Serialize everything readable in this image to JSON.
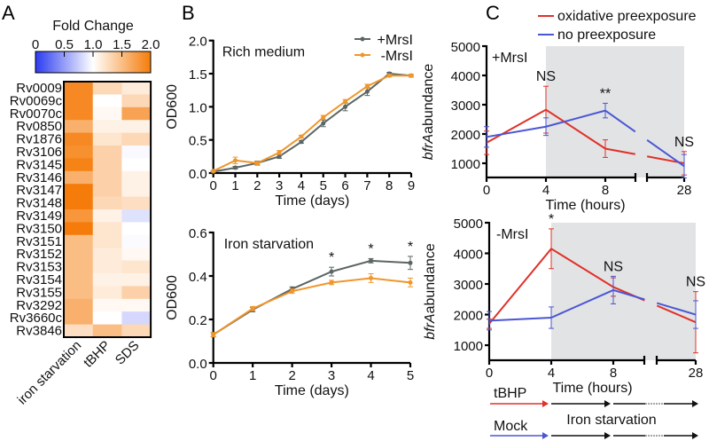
{
  "panel_labels": [
    "A",
    "B",
    "C"
  ],
  "colors": {
    "heat_low": "#2b3cf0",
    "heat_mid": "#ffffff",
    "heat_high": "#f57c0a",
    "plus_mrsi": "#5b6664",
    "minus_mrsi": "#f0962c",
    "oxidative": "#e0312a",
    "no_preexposure": "#4a56d4",
    "shading": "#e2e3e4"
  },
  "chart_data": [
    {
      "type": "heatmap",
      "title": "Fold Change",
      "colorbar_ticks": [
        "0",
        "0.5",
        "1.0",
        "1.5",
        "2.0"
      ],
      "colorbar_range": [
        0,
        2
      ],
      "columns": [
        "iron starvation",
        "tBHP",
        "SDS"
      ],
      "rows": [
        "Rv0009",
        "Rv0069c",
        "Rv0070c",
        "Rv0850",
        "Rv1876",
        "Rv3106",
        "Rv3145",
        "Rv3146",
        "Rv3147",
        "Rv3148",
        "Rv3149",
        "Rv3150",
        "Rv3151",
        "Rv3152",
        "Rv3153",
        "Rv3154",
        "Rv3155",
        "Rv3292",
        "Rv3660c",
        "Rv3846"
      ],
      "values": [
        [
          1.9,
          1.3,
          1.15
        ],
        [
          1.9,
          1.0,
          1.3
        ],
        [
          1.9,
          1.05,
          1.7
        ],
        [
          1.6,
          1.1,
          1.1
        ],
        [
          1.9,
          1.2,
          1.3
        ],
        [
          1.85,
          1.35,
          0.97
        ],
        [
          1.95,
          1.35,
          1.0
        ],
        [
          1.6,
          1.35,
          1.1
        ],
        [
          2.0,
          1.35,
          1.1
        ],
        [
          2.0,
          1.3,
          1.25
        ],
        [
          1.8,
          1.1,
          0.85
        ],
        [
          2.0,
          1.2,
          1.0
        ],
        [
          1.5,
          1.2,
          0.98
        ],
        [
          1.5,
          1.15,
          1.05
        ],
        [
          1.5,
          1.15,
          1.2
        ],
        [
          1.5,
          1.1,
          1.1
        ],
        [
          1.5,
          1.15,
          1.35
        ],
        [
          1.6,
          1.05,
          1.05
        ],
        [
          1.6,
          1.0,
          0.8
        ],
        [
          1.25,
          1.5,
          1.3
        ]
      ]
    },
    {
      "type": "line",
      "title": "Rich medium",
      "xlabel": "Time (days)",
      "ylabel": "OD600",
      "x": [
        0,
        1,
        2,
        3,
        4,
        5,
        6,
        7,
        8,
        9
      ],
      "xticks": [
        "0",
        "1",
        "2",
        "3",
        "4",
        "5",
        "6",
        "7",
        "8",
        "9"
      ],
      "yticks": [
        "0.0",
        "0.5",
        "1.0",
        "1.5",
        "2.0"
      ],
      "xlim": [
        0,
        9
      ],
      "ylim": [
        0,
        2.0
      ],
      "legend": "top-right",
      "series": [
        {
          "name": "+MrsI",
          "values": [
            0.02,
            0.08,
            0.15,
            0.25,
            0.47,
            0.75,
            1.0,
            1.23,
            1.5,
            1.47
          ],
          "error": [
            0.01,
            0.02,
            0.03,
            0.03,
            0.02,
            0.05,
            0.06,
            0.06,
            0.02,
            0.02
          ]
        },
        {
          "name": "-MrsI",
          "values": [
            0.03,
            0.19,
            0.15,
            0.31,
            0.55,
            0.84,
            1.08,
            1.31,
            1.47,
            1.47
          ],
          "error": [
            0.01,
            0.05,
            0.02,
            0.03,
            0.02,
            0.03,
            0.03,
            0.03,
            0.02,
            0.02
          ]
        }
      ],
      "annotations": []
    },
    {
      "type": "line",
      "title": "Iron starvation",
      "xlabel": "Time (days)",
      "ylabel": "OD600",
      "x": [
        0,
        1,
        2,
        3,
        4,
        5
      ],
      "xticks": [
        "0",
        "1",
        "2",
        "3",
        "4",
        "5"
      ],
      "yticks": [
        "0.0",
        "0.2",
        "0.4",
        "0.6"
      ],
      "xlim": [
        0,
        5
      ],
      "ylim": [
        0,
        0.6
      ],
      "series": [
        {
          "name": "+MrsI",
          "values": [
            0.13,
            0.245,
            0.34,
            0.42,
            0.47,
            0.46
          ],
          "error": [
            0.01,
            0.01,
            0.01,
            0.02,
            0.01,
            0.03
          ]
        },
        {
          "name": "-MrsI",
          "values": [
            0.13,
            0.25,
            0.33,
            0.37,
            0.39,
            0.37
          ],
          "error": [
            0.01,
            0.01,
            0.01,
            0.01,
            0.02,
            0.02
          ]
        }
      ],
      "annotations": [
        {
          "x": 3,
          "text": "*"
        },
        {
          "x": 4,
          "text": "*"
        },
        {
          "x": 5,
          "text": "*"
        }
      ]
    },
    {
      "type": "line",
      "title": "+MrsI",
      "xlabel": "Time (hours)",
      "ylabel_italic": "bfrA",
      "ylabel": "abundance",
      "x": [
        0,
        4,
        8,
        28
      ],
      "xticks": [
        "0",
        "4",
        "8",
        "28"
      ],
      "x_axis_break": true,
      "yticks": [
        "1000",
        "2000",
        "3000",
        "4000",
        "5000"
      ],
      "ylim": [
        500,
        5000
      ],
      "shaded_region_x": [
        4,
        28
      ],
      "legend": "top",
      "series": [
        {
          "name": "oxidative preexposure",
          "values": [
            1700,
            2830,
            1500,
            1000
          ],
          "error": [
            400,
            800,
            300,
            400
          ]
        },
        {
          "name": "no preexposure",
          "values": [
            1900,
            2250,
            2800,
            900
          ],
          "error": [
            350,
            300,
            250,
            400
          ]
        }
      ],
      "annotations": [
        {
          "x": 4,
          "text": "NS"
        },
        {
          "x": 8,
          "text": "**"
        },
        {
          "x": 28,
          "text": "NS"
        }
      ]
    },
    {
      "type": "line",
      "title": "-MrsI",
      "xlabel": "Time (hours)",
      "ylabel_italic": "bfrA",
      "ylabel": "abundance",
      "x": [
        0,
        4,
        8,
        28
      ],
      "xticks": [
        "0",
        "4",
        "8",
        "28"
      ],
      "x_axis_break": true,
      "yticks": [
        "1000",
        "2000",
        "3000",
        "4000",
        "5000"
      ],
      "ylim": [
        500,
        5000
      ],
      "shaded_region_x": [
        4,
        28
      ],
      "series": [
        {
          "name": "oxidative preexposure",
          "values": [
            1700,
            4150,
            2900,
            1750
          ],
          "error": [
            150,
            650,
            300,
            1000
          ]
        },
        {
          "name": "no preexposure",
          "values": [
            1800,
            1900,
            2800,
            2000
          ],
          "error": [
            300,
            350,
            450,
            450
          ]
        }
      ],
      "annotations": [
        {
          "x": 4,
          "text": "*"
        },
        {
          "x": 8,
          "text": "NS"
        },
        {
          "x": 28,
          "text": "NS"
        }
      ]
    }
  ],
  "protocol": {
    "treatment_label": "tBHP",
    "control_label": "Mock",
    "phase_label": "Iron starvation"
  }
}
